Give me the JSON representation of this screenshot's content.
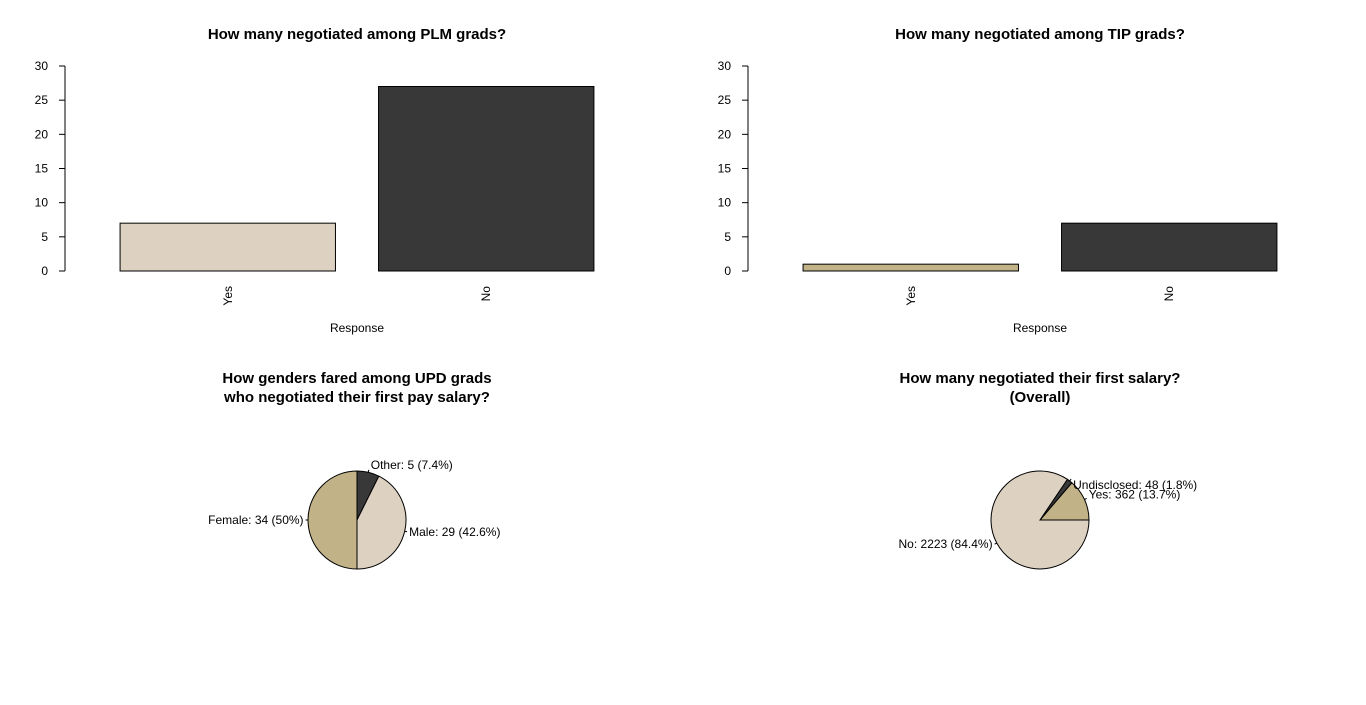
{
  "chart_data": [
    {
      "type": "bar",
      "title": "How many negotiated among PLM grads?",
      "xlabel": "Response",
      "ylabel": "",
      "categories": [
        "Yes",
        "No"
      ],
      "values": [
        7,
        27
      ],
      "colors": [
        "#ddd1c1",
        "#383838"
      ],
      "ylim": [
        0,
        30
      ],
      "yticks": [
        "0",
        "5",
        "10",
        "15",
        "20",
        "25",
        "30"
      ]
    },
    {
      "type": "bar",
      "title": "How many negotiated among TIP grads?",
      "xlabel": "Response",
      "ylabel": "",
      "categories": [
        "Yes",
        "No"
      ],
      "values": [
        1,
        7
      ],
      "colors": [
        "#c1b287",
        "#383838"
      ],
      "ylim": [
        0,
        30
      ],
      "yticks": [
        "0",
        "5",
        "10",
        "15",
        "20",
        "25",
        "30"
      ]
    },
    {
      "type": "pie",
      "title_lines": [
        "How genders fared among UPD grads",
        "who negotiated their first pay salary?"
      ],
      "slices": [
        {
          "label": "Other: 5 (7.4%)",
          "value": 5,
          "color": "#383838"
        },
        {
          "label": "Male: 29 (42.6%)",
          "value": 29,
          "color": "#ddd1c1"
        },
        {
          "label": "Female: 34 (50%)",
          "value": 34,
          "color": "#c1b287"
        }
      ]
    },
    {
      "type": "pie",
      "title_lines": [
        "How many negotiated their first salary?",
        "(Overall)"
      ],
      "slices": [
        {
          "label": "Yes: 362 (13.7%)",
          "value": 362,
          "color": "#c1b287"
        },
        {
          "label": "Undisclosed: 48 (1.8%)",
          "value": 48,
          "color": "#383838"
        },
        {
          "label": "No: 2223 (84.4%)",
          "value": 2223,
          "color": "#ddd1c1"
        }
      ]
    }
  ]
}
